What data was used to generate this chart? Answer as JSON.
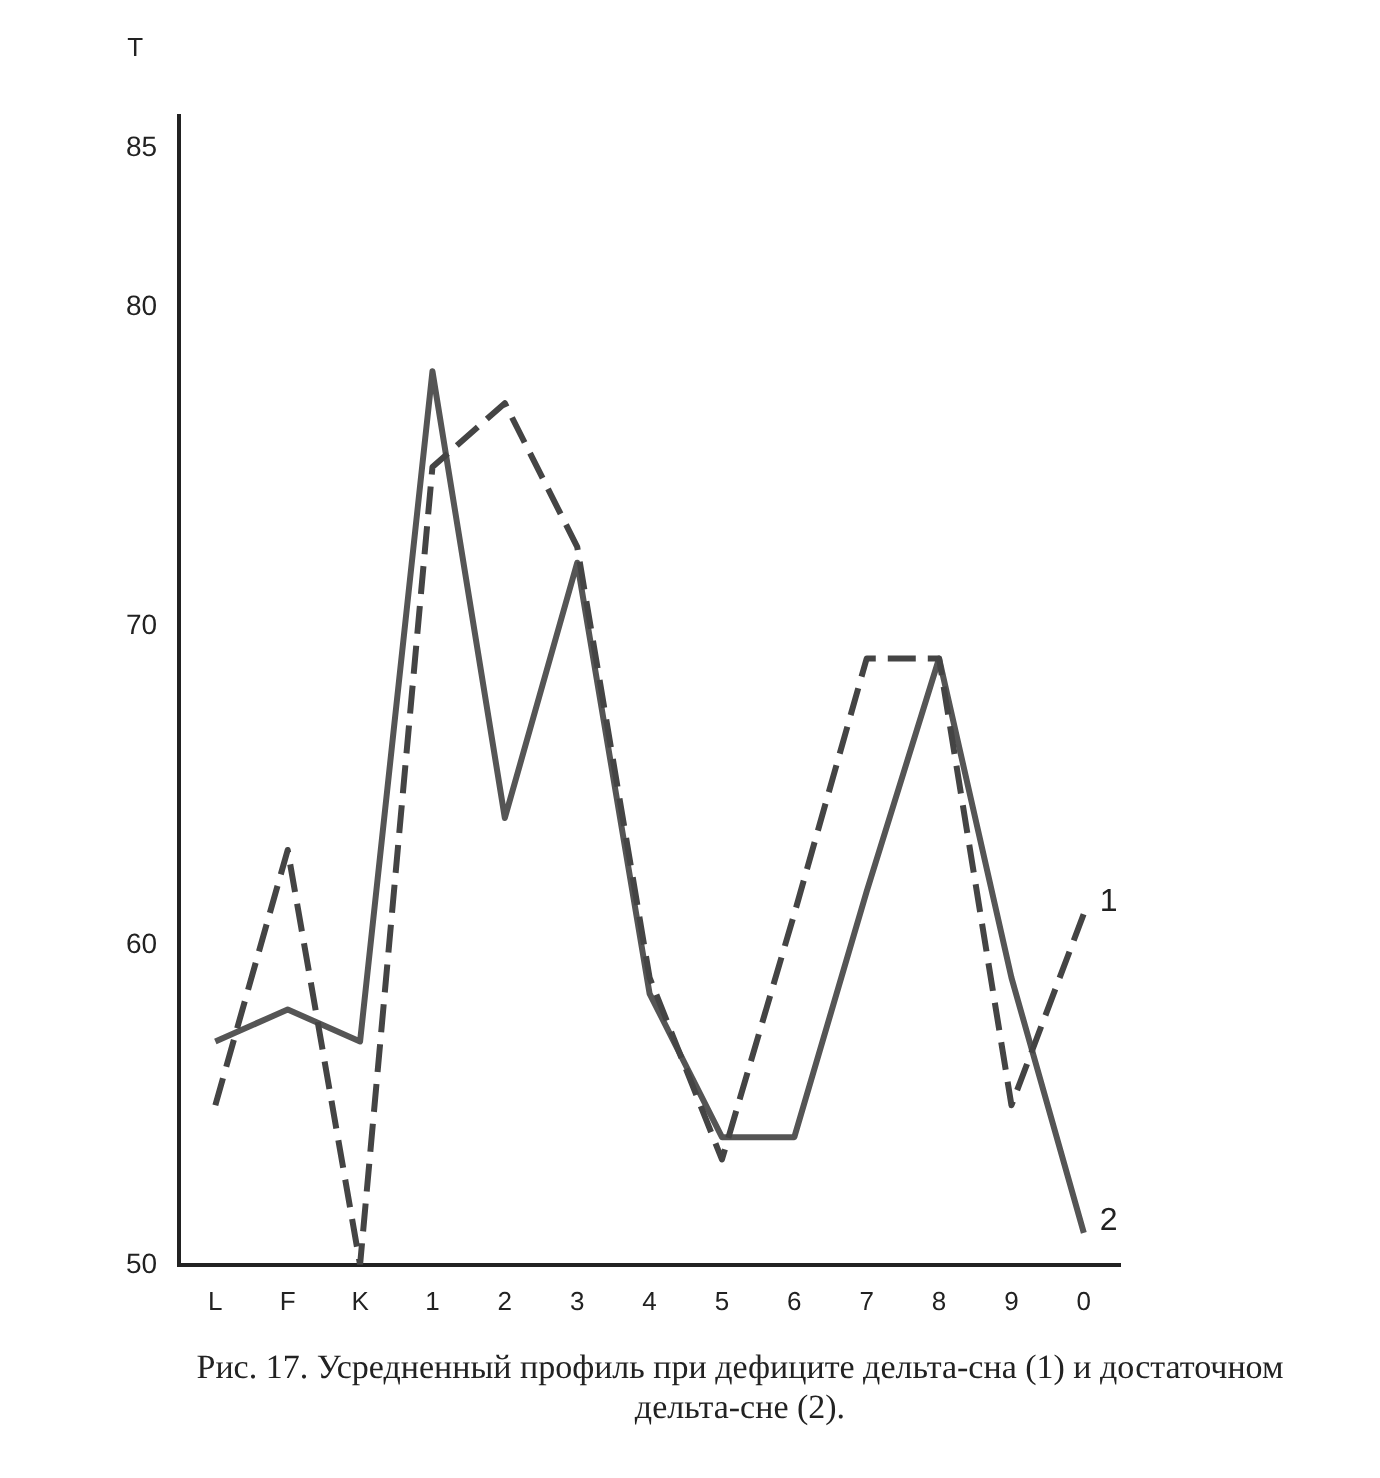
{
  "chart_data": {
    "type": "line",
    "ylabel": "T",
    "categories": [
      "L",
      "F",
      "K",
      "1",
      "2",
      "3",
      "4",
      "5",
      "6",
      "7",
      "8",
      "9",
      "0"
    ],
    "series": [
      {
        "name": "1",
        "color": "#444444",
        "line_style": "dashed",
        "values": [
          55,
          63,
          50,
          75,
          77,
          72.5,
          59,
          53.3,
          61,
          69,
          69,
          55,
          61
        ]
      },
      {
        "name": "2",
        "color": "#555555",
        "line_style": "solid",
        "values": [
          57,
          58,
          57,
          78,
          64,
          72,
          58.5,
          54,
          54,
          61.7,
          69,
          59,
          51
        ]
      }
    ],
    "ylim": [
      50,
      86
    ],
    "yticks": [
      50,
      60,
      70,
      80,
      85
    ],
    "grid": false,
    "legend": false,
    "marker": "none",
    "annotations": [
      "Рис. 17. Усредненный профиль при дефиците дельта-сна (1) и достаточном дельта-сне (2)."
    ]
  }
}
